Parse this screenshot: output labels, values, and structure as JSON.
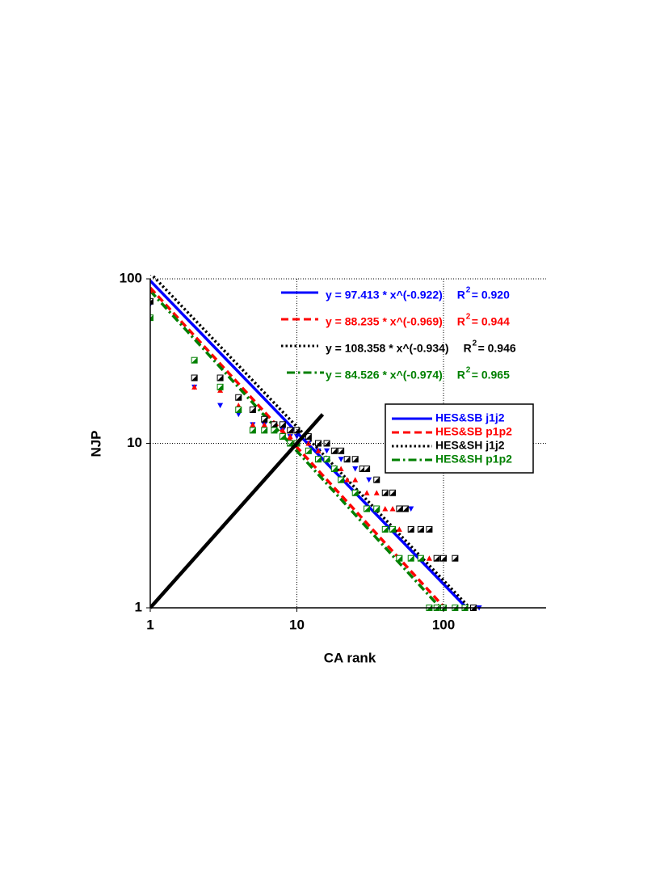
{
  "chart_data": {
    "type": "scatter",
    "x_label": "CA rank",
    "y_label": "NJP",
    "xscale": "log",
    "yscale": "log",
    "xlim": [
      1,
      500
    ],
    "ylim": [
      1,
      100
    ],
    "xticks": [
      1,
      10,
      100
    ],
    "yticks": [
      1,
      10,
      100
    ],
    "grid": true,
    "legend": "right",
    "reference_line": {
      "color": "#000000",
      "x": [
        1,
        15
      ],
      "y": [
        1,
        15
      ]
    },
    "series": [
      {
        "name": "HES&SB j1j2",
        "color": "#0000ff",
        "marker": "triangle-down",
        "dash": "solid",
        "x": [
          1,
          2,
          3,
          4,
          5,
          6,
          7,
          8,
          9,
          10,
          12,
          14,
          16,
          18,
          20,
          22,
          25,
          28,
          31,
          35,
          40,
          45,
          50,
          60,
          70,
          80,
          90,
          100,
          120,
          140,
          160,
          175
        ],
        "values": [
          70,
          22,
          17,
          15,
          13,
          13,
          13,
          12,
          11,
          11,
          10,
          9,
          9,
          9,
          8,
          8,
          7,
          7,
          6,
          6,
          5,
          5,
          4,
          4,
          3,
          3,
          2,
          2,
          1,
          1,
          1,
          1
        ],
        "fit": {
          "a": 97.413,
          "b": -0.922
        },
        "equation": "y =  97.413 * x^(-0.922)",
        "r2": {
          "label": "R",
          "sup": "2",
          "text": "= 0.920"
        }
      },
      {
        "name": "HES&SB p1p2",
        "color": "#ff0000",
        "marker": "triangle-up",
        "dash": "dashed",
        "x": [
          1,
          2,
          3,
          4,
          5,
          6,
          7,
          8,
          9,
          10,
          12,
          14,
          16,
          18,
          20,
          22,
          25,
          30,
          35,
          40,
          45,
          50,
          60,
          70,
          80,
          100,
          120
        ],
        "values": [
          85,
          22,
          21,
          17,
          13,
          13,
          12,
          12,
          11,
          10,
          10,
          9,
          8,
          7,
          7,
          6,
          6,
          5,
          5,
          4,
          4,
          3,
          3,
          2,
          2,
          1,
          1
        ],
        "fit": {
          "a": 88.235,
          "b": -0.969
        },
        "equation": "y =  88.235 * x^(-0.969)",
        "r2": {
          "label": "R",
          "sup": "2",
          "text": "= 0.944"
        }
      },
      {
        "name": "HES&SH j1j2",
        "color": "#000000",
        "marker": "half-square",
        "dash": "dotted",
        "x": [
          1,
          2,
          3,
          4,
          5,
          6,
          7,
          8,
          9,
          10,
          12,
          14,
          16,
          18,
          20,
          22,
          25,
          28,
          30,
          35,
          40,
          45,
          50,
          55,
          60,
          70,
          80,
          90,
          100,
          120,
          140,
          160
        ],
        "values": [
          73,
          25,
          25,
          19,
          16,
          14,
          13,
          13,
          12,
          12,
          11,
          10,
          10,
          9,
          9,
          8,
          8,
          7,
          7,
          6,
          5,
          5,
          4,
          4,
          3,
          3,
          3,
          2,
          2,
          2,
          1,
          1
        ],
        "fit": {
          "a": 108.358,
          "b": -0.934
        },
        "equation": "y = 108.358 * x^(-0.934)",
        "r2": {
          "label": "R",
          "sup": "2",
          "text": "= 0.946"
        }
      },
      {
        "name": "HES&SH p1p2",
        "color": "#008000",
        "marker": "half-square",
        "dash": "dashdot",
        "x": [
          1,
          2,
          3,
          4,
          5,
          6,
          7,
          8,
          9,
          10,
          12,
          14,
          16,
          18,
          20,
          25,
          30,
          35,
          40,
          45,
          50,
          60,
          70,
          80,
          90,
          100,
          120,
          140
        ],
        "values": [
          58,
          32,
          22,
          16,
          12,
          12,
          12,
          11,
          10,
          10,
          9,
          8,
          8,
          7,
          6,
          5,
          4,
          4,
          3,
          3,
          2,
          2,
          2,
          1,
          1,
          1,
          1,
          1
        ],
        "fit": {
          "a": 84.526,
          "b": -0.974
        },
        "equation": "y =  84.526 * x^(-0.974)",
        "r2": {
          "label": "R",
          "sup": "2",
          "text": "= 0.965"
        }
      }
    ]
  }
}
